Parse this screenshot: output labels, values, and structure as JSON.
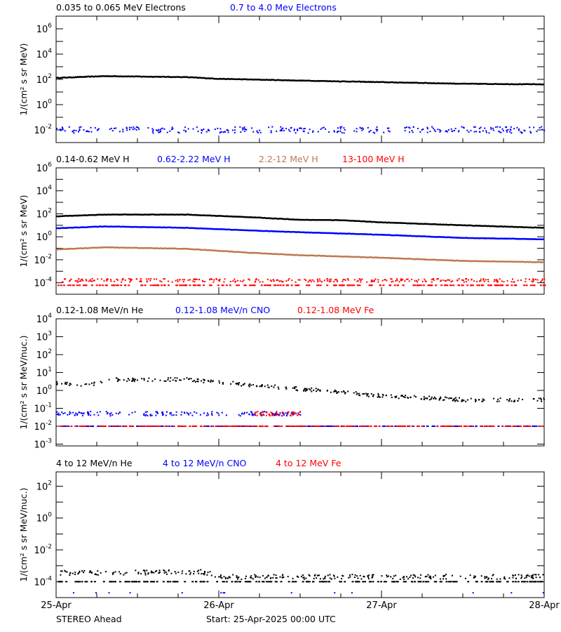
{
  "chart_data": [
    {
      "type": "scatter",
      "ylabel": "1/(cm² s sr MeV)",
      "yscale": "log",
      "ylim_exp": [
        -3,
        7
      ],
      "ytick_labels_exp": [
        6,
        4,
        2,
        0,
        -2
      ],
      "legend": [
        {
          "name": "0.035 to 0.065 MeV Electrons",
          "color": "#000000"
        },
        {
          "name": "0.7 to 4.0 Mev Electrons",
          "color": "#0000ff"
        }
      ],
      "series": [
        {
          "color": "#000000",
          "style": "line",
          "spread": 0.04,
          "trend": [
            [
              0,
              130
            ],
            [
              0.3,
              180
            ],
            [
              0.8,
              150
            ],
            [
              1.0,
              110
            ],
            [
              1.5,
              80
            ],
            [
              2.0,
              60
            ],
            [
              2.5,
              45
            ],
            [
              3.0,
              40
            ]
          ]
        },
        {
          "color": "#0000ff",
          "style": "scatter",
          "spread": 0.25,
          "trend": [
            [
              0,
              0.01
            ],
            [
              3,
              0.01
            ]
          ]
        }
      ]
    },
    {
      "type": "line",
      "ylabel": "1/(cm² s sr MeV)",
      "yscale": "log",
      "ylim_exp": [
        -5,
        6
      ],
      "ytick_labels_exp": [
        6,
        4,
        2,
        0,
        -2,
        -4
      ],
      "legend": [
        {
          "name": "0.14-0.62 MeV H",
          "color": "#000000"
        },
        {
          "name": "0.62-2.22 MeV H",
          "color": "#0000ff"
        },
        {
          "name": "2.2-12 MeV H",
          "color": "#c07850"
        },
        {
          "name": "13-100 MeV H",
          "color": "#ff0000"
        }
      ],
      "series": [
        {
          "color": "#000000",
          "style": "line",
          "spread": 0.03,
          "trend": [
            [
              0,
              60
            ],
            [
              0.3,
              85
            ],
            [
              0.8,
              85
            ],
            [
              1.2,
              50
            ],
            [
              1.5,
              30
            ],
            [
              1.75,
              28
            ],
            [
              2.0,
              18
            ],
            [
              2.5,
              10
            ],
            [
              3.0,
              6
            ]
          ]
        },
        {
          "color": "#0000ff",
          "style": "line",
          "spread": 0.03,
          "trend": [
            [
              0,
              5.5
            ],
            [
              0.3,
              8
            ],
            [
              0.8,
              6
            ],
            [
              1.2,
              3.5
            ],
            [
              1.5,
              2.5
            ],
            [
              2.0,
              1.5
            ],
            [
              2.5,
              0.8
            ],
            [
              3.0,
              0.6
            ]
          ]
        },
        {
          "color": "#c07850",
          "style": "line",
          "spread": 0.04,
          "trend": [
            [
              0,
              0.08
            ],
            [
              0.3,
              0.12
            ],
            [
              0.8,
              0.09
            ],
            [
              1.2,
              0.04
            ],
            [
              1.5,
              0.025
            ],
            [
              2.0,
              0.015
            ],
            [
              2.5,
              0.008
            ],
            [
              3.0,
              0.006
            ]
          ]
        },
        {
          "color": "#ff0000",
          "style": "scatter",
          "spread": 0.15,
          "trend": [
            [
              0,
              0.00016
            ],
            [
              3,
              0.00016
            ]
          ],
          "floor": 6e-05
        }
      ]
    },
    {
      "type": "scatter",
      "ylabel": "1/(cm² s sr MeV/nuc.)",
      "yscale": "log",
      "ylim_exp": [
        -3.1,
        4
      ],
      "ytick_labels_exp": [
        4,
        3,
        2,
        1,
        0,
        -1,
        -2,
        -3
      ],
      "legend": [
        {
          "name": "0.12-1.08 MeV/n He",
          "color": "#000000"
        },
        {
          "name": "0.12-1.08 MeV/n CNO",
          "color": "#0000ff"
        },
        {
          "name": "0.12-1.08 MeV Fe",
          "color": "#ff0000"
        }
      ],
      "series": [
        {
          "color": "#000000",
          "style": "scatter",
          "spread": 0.1,
          "trend": [
            [
              0,
              2.5
            ],
            [
              0.2,
              2
            ],
            [
              0.35,
              4
            ],
            [
              0.8,
              4
            ],
            [
              1.2,
              2
            ],
            [
              1.5,
              1.2
            ],
            [
              2.0,
              0.5
            ],
            [
              2.5,
              0.3
            ],
            [
              3.0,
              0.3
            ]
          ]
        },
        {
          "color": "#0000ff",
          "style": "scatter",
          "spread": 0.12,
          "trend": [
            [
              0,
              0.05
            ],
            [
              1.5,
              0.05
            ]
          ],
          "floor": 0.01
        },
        {
          "color": "#ff0000",
          "style": "scatter",
          "spread": 0.12,
          "trend": [
            [
              1.2,
              0.05
            ],
            [
              1.5,
              0.05
            ]
          ],
          "floor": 0.01
        }
      ]
    },
    {
      "type": "scatter",
      "ylabel": "1/(cm² s sr MeV/nuc.)",
      "yscale": "log",
      "ylim_exp": [
        -5,
        2.9
      ],
      "ytick_labels_exp": [
        2,
        0,
        -2,
        -4
      ],
      "legend": [
        {
          "name": "4 to 12 MeV/n He",
          "color": "#000000"
        },
        {
          "name": "4 to 12 MeV/n CNO",
          "color": "#0000ff"
        },
        {
          "name": "4 to 12 MeV Fe",
          "color": "#ff0000"
        }
      ],
      "series": [
        {
          "color": "#000000",
          "style": "scatter",
          "spread": 0.15,
          "trend": [
            [
              0,
              0.00035
            ],
            [
              0.9,
              0.0004
            ],
            [
              1.0,
              0.0002
            ],
            [
              3.0,
              0.0002
            ]
          ],
          "floor": 0.0001
        },
        {
          "color": "#0000ff",
          "style": "sparse",
          "spread": 0,
          "trend": [
            [
              0,
              2e-05
            ],
            [
              3,
              2e-05
            ]
          ]
        }
      ]
    }
  ],
  "xaxis": {
    "tick_labels": [
      "25-Apr",
      "26-Apr",
      "27-Apr",
      "28-Apr"
    ],
    "range_days": [
      0,
      3
    ]
  },
  "footer": {
    "spacecraft": "STEREO Ahead",
    "start": "Start: 25-Apr-2025 00:00 UTC"
  }
}
